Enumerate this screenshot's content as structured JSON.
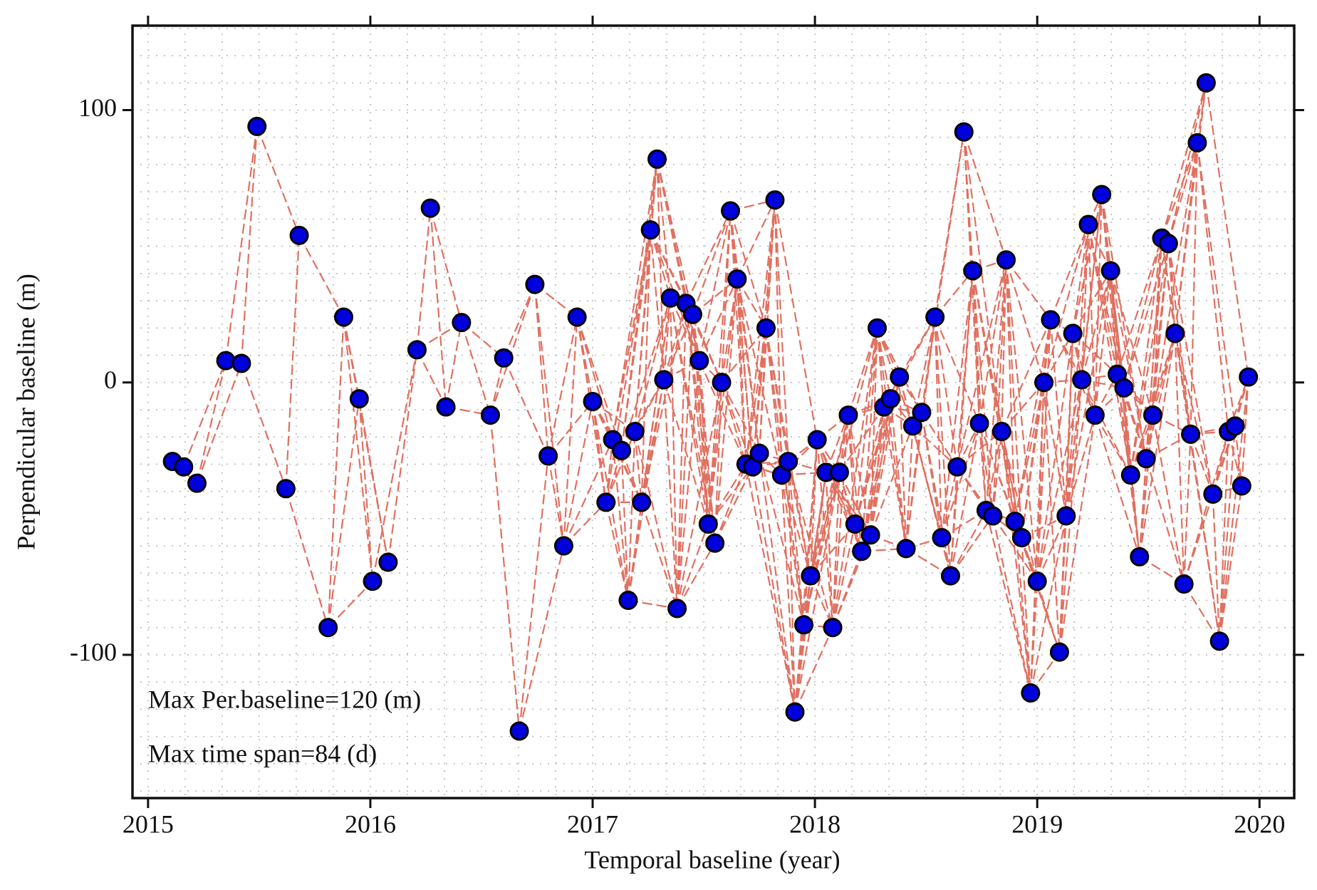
{
  "chart_data": {
    "type": "scatter",
    "xlabel": "Temporal baseline (year)",
    "ylabel": "Perpendicular baseline (m)",
    "annotations": [
      "Max Per.baseline=120 (m)",
      "Max time span=84 (d)"
    ],
    "xlim": [
      2014.93,
      2020.156
    ],
    "ylim": [
      -152.6,
      131
    ],
    "xticks": [
      2015,
      2016,
      2017,
      2018,
      2019,
      2020
    ],
    "yticks": [
      -100,
      0,
      100
    ],
    "grid": true,
    "color": "#0000dd",
    "line_color": "#e07060",
    "x": [
      2015.11,
      2015.16,
      2015.22,
      2015.35,
      2015.42,
      2015.49,
      2015.62,
      2015.68,
      2015.81,
      2015.88,
      2015.95,
      2016.01,
      2016.08,
      2016.21,
      2016.27,
      2016.34,
      2016.41,
      2016.54,
      2016.6,
      2016.67,
      2016.74,
      2016.8,
      2016.87,
      2016.93,
      2017.0,
      2017.06,
      2017.09,
      2017.13,
      2017.16,
      2017.19,
      2017.22,
      2017.26,
      2017.29,
      2017.32,
      2017.35,
      2017.38,
      2017.42,
      2017.45,
      2017.48,
      2017.52,
      2017.55,
      2017.58,
      2017.62,
      2017.65,
      2017.69,
      2017.72,
      2017.75,
      2017.78,
      2017.82,
      2017.85,
      2017.88,
      2017.91,
      2017.95,
      2017.98,
      2018.01,
      2018.05,
      2018.08,
      2018.11,
      2018.15,
      2018.18,
      2018.21,
      2018.25,
      2018.28,
      2018.31,
      2018.34,
      2018.38,
      2018.41,
      2018.44,
      2018.48,
      2018.54,
      2018.57,
      2018.61,
      2018.64,
      2018.67,
      2018.71,
      2018.74,
      2018.77,
      2018.8,
      2018.84,
      2018.86,
      2018.9,
      2018.93,
      2018.97,
      2019.0,
      2019.03,
      2019.06,
      2019.1,
      2019.13,
      2019.16,
      2019.2,
      2019.23,
      2019.26,
      2019.29,
      2019.33,
      2019.36,
      2019.39,
      2019.42,
      2019.46,
      2019.49,
      2019.52,
      2019.56,
      2019.59,
      2019.62,
      2019.66,
      2019.69,
      2019.72,
      2019.76,
      2019.79,
      2019.82,
      2019.86,
      2019.89,
      2019.92,
      2019.95
    ],
    "values": [
      -29,
      -31,
      -37,
      8,
      7,
      94,
      -39,
      54,
      -90,
      24,
      -6,
      -73,
      -66,
      12,
      64,
      -9,
      22,
      -12,
      9,
      -128,
      36,
      -27,
      -60,
      24,
      -7,
      -44,
      -21,
      -25,
      -80,
      -18,
      -44,
      56,
      82,
      1,
      31,
      -83,
      29,
      25,
      8,
      -52,
      -59,
      0,
      63,
      38,
      -30,
      -31,
      -26,
      20,
      67,
      -34,
      -29,
      -121,
      -89,
      -71,
      -21,
      -33,
      -90,
      -33,
      -12,
      -52,
      -62,
      -56,
      20,
      -9,
      -6,
      2,
      -61,
      -16,
      -11,
      24,
      -57,
      -71,
      -31,
      92,
      41,
      -15,
      -47,
      -49,
      -18,
      45,
      -51,
      -57,
      -114,
      -73,
      0,
      23,
      -99,
      -49,
      18,
      1,
      58,
      -12,
      69,
      41,
      3,
      -2,
      -34,
      -64,
      -28,
      -12,
      53,
      51,
      18,
      -74,
      -19,
      88,
      110,
      -41,
      -95,
      -18,
      -16,
      -38,
      2
    ]
  }
}
